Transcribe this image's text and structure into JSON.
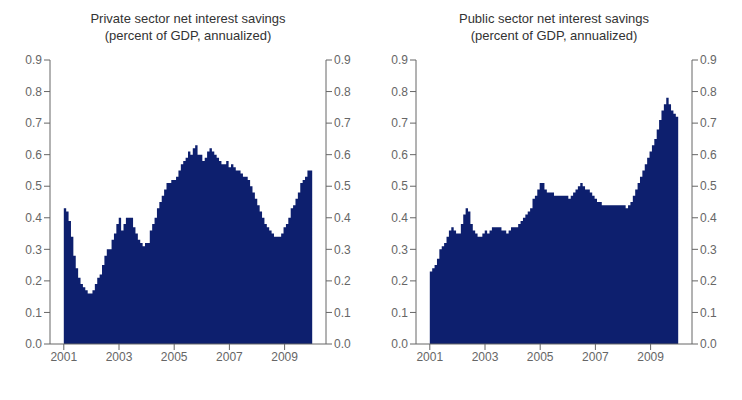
{
  "chart_data": [
    {
      "type": "area",
      "title": "Private sector net interest savings\n(percent of GDP, annualized)",
      "grid": false,
      "x": [
        2001,
        2001.0865,
        2001.1731,
        2001.2596,
        2001.3462,
        2001.4327,
        2001.5192,
        2001.6058,
        2001.6923,
        2001.7788,
        2001.8654,
        2001.9519,
        2002.0385,
        2002.125,
        2002.2115,
        2002.2981,
        2002.3846,
        2002.4712,
        2002.5577,
        2002.6442,
        2002.7308,
        2002.8173,
        2002.9038,
        2002.9904,
        2003.0769,
        2003.1635,
        2003.25,
        2003.3365,
        2003.4231,
        2003.5096,
        2003.5962,
        2003.6827,
        2003.7692,
        2003.8558,
        2003.9423,
        2004.0288,
        2004.1154,
        2004.2019,
        2004.2885,
        2004.375,
        2004.4615,
        2004.5481,
        2004.6346,
        2004.7212,
        2004.8077,
        2004.8942,
        2004.9808,
        2005.0673,
        2005.1538,
        2005.2404,
        2005.3269,
        2005.4135,
        2005.5,
        2005.5865,
        2005.6731,
        2005.7596,
        2005.8462,
        2005.9327,
        2006.0192,
        2006.1058,
        2006.1923,
        2006.2788,
        2006.3654,
        2006.4519,
        2006.5385,
        2006.625,
        2006.7115,
        2006.7981,
        2006.8846,
        2006.9712,
        2007.0577,
        2007.1442,
        2007.2308,
        2007.3173,
        2007.4038,
        2007.4904,
        2007.5769,
        2007.6635,
        2007.75,
        2007.8365,
        2007.9231,
        2008.0096,
        2008.0962,
        2008.1827,
        2008.2692,
        2008.3558,
        2008.4423,
        2008.5288,
        2008.6154,
        2008.7019,
        2008.7885,
        2008.875,
        2008.9615,
        2009.0481,
        2009.1346,
        2009.2212,
        2009.3077,
        2009.3942,
        2009.4808,
        2009.5673,
        2009.6538,
        2009.7404,
        2009.8269,
        2009.9135,
        2010
      ],
      "series": [
        {
          "color": "#0d1f6e",
          "line_style": "step",
          "values": [
            0.43,
            0.42,
            0.39,
            0.34,
            0.28,
            0.24,
            0.21,
            0.19,
            0.18,
            0.17,
            0.16,
            0.16,
            0.17,
            0.19,
            0.21,
            0.22,
            0.25,
            0.28,
            0.3,
            0.3,
            0.33,
            0.35,
            0.38,
            0.4,
            0.36,
            0.38,
            0.4,
            0.4,
            0.4,
            0.37,
            0.35,
            0.33,
            0.32,
            0.31,
            0.32,
            0.32,
            0.36,
            0.38,
            0.4,
            0.43,
            0.45,
            0.47,
            0.49,
            0.51,
            0.51,
            0.52,
            0.52,
            0.53,
            0.55,
            0.57,
            0.58,
            0.59,
            0.61,
            0.6,
            0.62,
            0.63,
            0.6,
            0.6,
            0.58,
            0.59,
            0.61,
            0.62,
            0.61,
            0.6,
            0.59,
            0.58,
            0.57,
            0.57,
            0.58,
            0.56,
            0.57,
            0.56,
            0.55,
            0.55,
            0.54,
            0.53,
            0.53,
            0.52,
            0.5,
            0.48,
            0.46,
            0.44,
            0.42,
            0.4,
            0.38,
            0.37,
            0.36,
            0.35,
            0.34,
            0.34,
            0.34,
            0.35,
            0.37,
            0.38,
            0.4,
            0.43,
            0.44,
            0.46,
            0.48,
            0.51,
            0.52,
            0.53,
            0.55,
            0.55,
            0.57
          ]
        }
      ],
      "xlim": [
        2000.5,
        2010.5
      ],
      "xticks": [
        2001,
        2003,
        2005,
        2007,
        2009
      ],
      "ylim": [
        0.0,
        0.9
      ],
      "yticks": [
        {
          "value": 0.0,
          "label": "0.0"
        },
        0.1,
        0.2,
        0.3,
        0.4,
        0.5,
        0.6,
        0.7,
        0.8,
        0.9
      ],
      "y2lim": [
        0.0,
        0.9
      ],
      "y2ticks": [
        {
          "value": 0.0,
          "label": "0.0"
        },
        0.1,
        0.2,
        0.3,
        0.4,
        0.5,
        0.6,
        0.7,
        0.8,
        0.9
      ]
    },
    {
      "type": "area",
      "title": "Public sector net interest savings\n(percent of GDP, annualized)",
      "grid": false,
      "x": [
        2001,
        2001.0865,
        2001.1731,
        2001.2596,
        2001.3462,
        2001.4327,
        2001.5192,
        2001.6058,
        2001.6923,
        2001.7788,
        2001.8654,
        2001.9519,
        2002.0385,
        2002.125,
        2002.2115,
        2002.2981,
        2002.3846,
        2002.4712,
        2002.5577,
        2002.6442,
        2002.7308,
        2002.8173,
        2002.9038,
        2002.9904,
        2003.0769,
        2003.1635,
        2003.25,
        2003.3365,
        2003.4231,
        2003.5096,
        2003.5962,
        2003.6827,
        2003.7692,
        2003.8558,
        2003.9423,
        2004.0288,
        2004.1154,
        2004.2019,
        2004.2885,
        2004.375,
        2004.4615,
        2004.5481,
        2004.6346,
        2004.7212,
        2004.8077,
        2004.8942,
        2004.9808,
        2005.0673,
        2005.1538,
        2005.2404,
        2005.3269,
        2005.4135,
        2005.5,
        2005.5865,
        2005.6731,
        2005.7596,
        2005.8462,
        2005.9327,
        2006.0192,
        2006.1058,
        2006.1923,
        2006.2788,
        2006.3654,
        2006.4519,
        2006.5385,
        2006.625,
        2006.7115,
        2006.7981,
        2006.8846,
        2006.9712,
        2007.0577,
        2007.1442,
        2007.2308,
        2007.3173,
        2007.4038,
        2007.4904,
        2007.5769,
        2007.6635,
        2007.75,
        2007.8365,
        2007.9231,
        2008.0096,
        2008.0962,
        2008.1827,
        2008.2692,
        2008.3558,
        2008.4423,
        2008.5288,
        2008.6154,
        2008.7019,
        2008.7885,
        2008.875,
        2008.9615,
        2009.0481,
        2009.1346,
        2009.2212,
        2009.3077,
        2009.3942,
        2009.4808,
        2009.5673,
        2009.6538,
        2009.7404,
        2009.8269,
        2009.9135,
        2010
      ],
      "series": [
        {
          "color": "#0d1f6e",
          "line_style": "step",
          "values": [
            0.23,
            0.24,
            0.25,
            0.27,
            0.3,
            0.31,
            0.32,
            0.34,
            0.36,
            0.37,
            0.36,
            0.35,
            0.35,
            0.38,
            0.41,
            0.43,
            0.42,
            0.38,
            0.36,
            0.35,
            0.34,
            0.34,
            0.35,
            0.36,
            0.35,
            0.36,
            0.37,
            0.37,
            0.37,
            0.37,
            0.36,
            0.36,
            0.35,
            0.36,
            0.37,
            0.37,
            0.37,
            0.38,
            0.39,
            0.4,
            0.41,
            0.42,
            0.43,
            0.46,
            0.47,
            0.49,
            0.51,
            0.51,
            0.49,
            0.48,
            0.48,
            0.48,
            0.47,
            0.47,
            0.47,
            0.47,
            0.47,
            0.47,
            0.46,
            0.47,
            0.48,
            0.49,
            0.5,
            0.51,
            0.5,
            0.49,
            0.49,
            0.48,
            0.47,
            0.46,
            0.45,
            0.45,
            0.44,
            0.44,
            0.44,
            0.44,
            0.44,
            0.44,
            0.44,
            0.44,
            0.44,
            0.44,
            0.43,
            0.44,
            0.45,
            0.47,
            0.49,
            0.51,
            0.53,
            0.55,
            0.57,
            0.59,
            0.61,
            0.63,
            0.65,
            0.68,
            0.71,
            0.74,
            0.76,
            0.78,
            0.76,
            0.74,
            0.73,
            0.72,
            0.7
          ]
        }
      ],
      "xlim": [
        2000.5,
        2010.5
      ],
      "xticks": [
        2001,
        2003,
        2005,
        2007,
        2009
      ],
      "ylim": [
        0.0,
        0.9
      ],
      "yticks": [
        {
          "value": 0.0,
          "label": "0.0"
        },
        0.1,
        0.2,
        0.3,
        0.4,
        0.5,
        0.6,
        0.7,
        0.8,
        0.9
      ],
      "y2lim": [
        0.0,
        0.9
      ],
      "y2ticks": [
        {
          "value": 0.0,
          "label": "0.0"
        },
        0.1,
        0.2,
        0.3,
        0.4,
        0.5,
        0.6,
        0.7,
        0.8,
        0.9
      ]
    }
  ]
}
